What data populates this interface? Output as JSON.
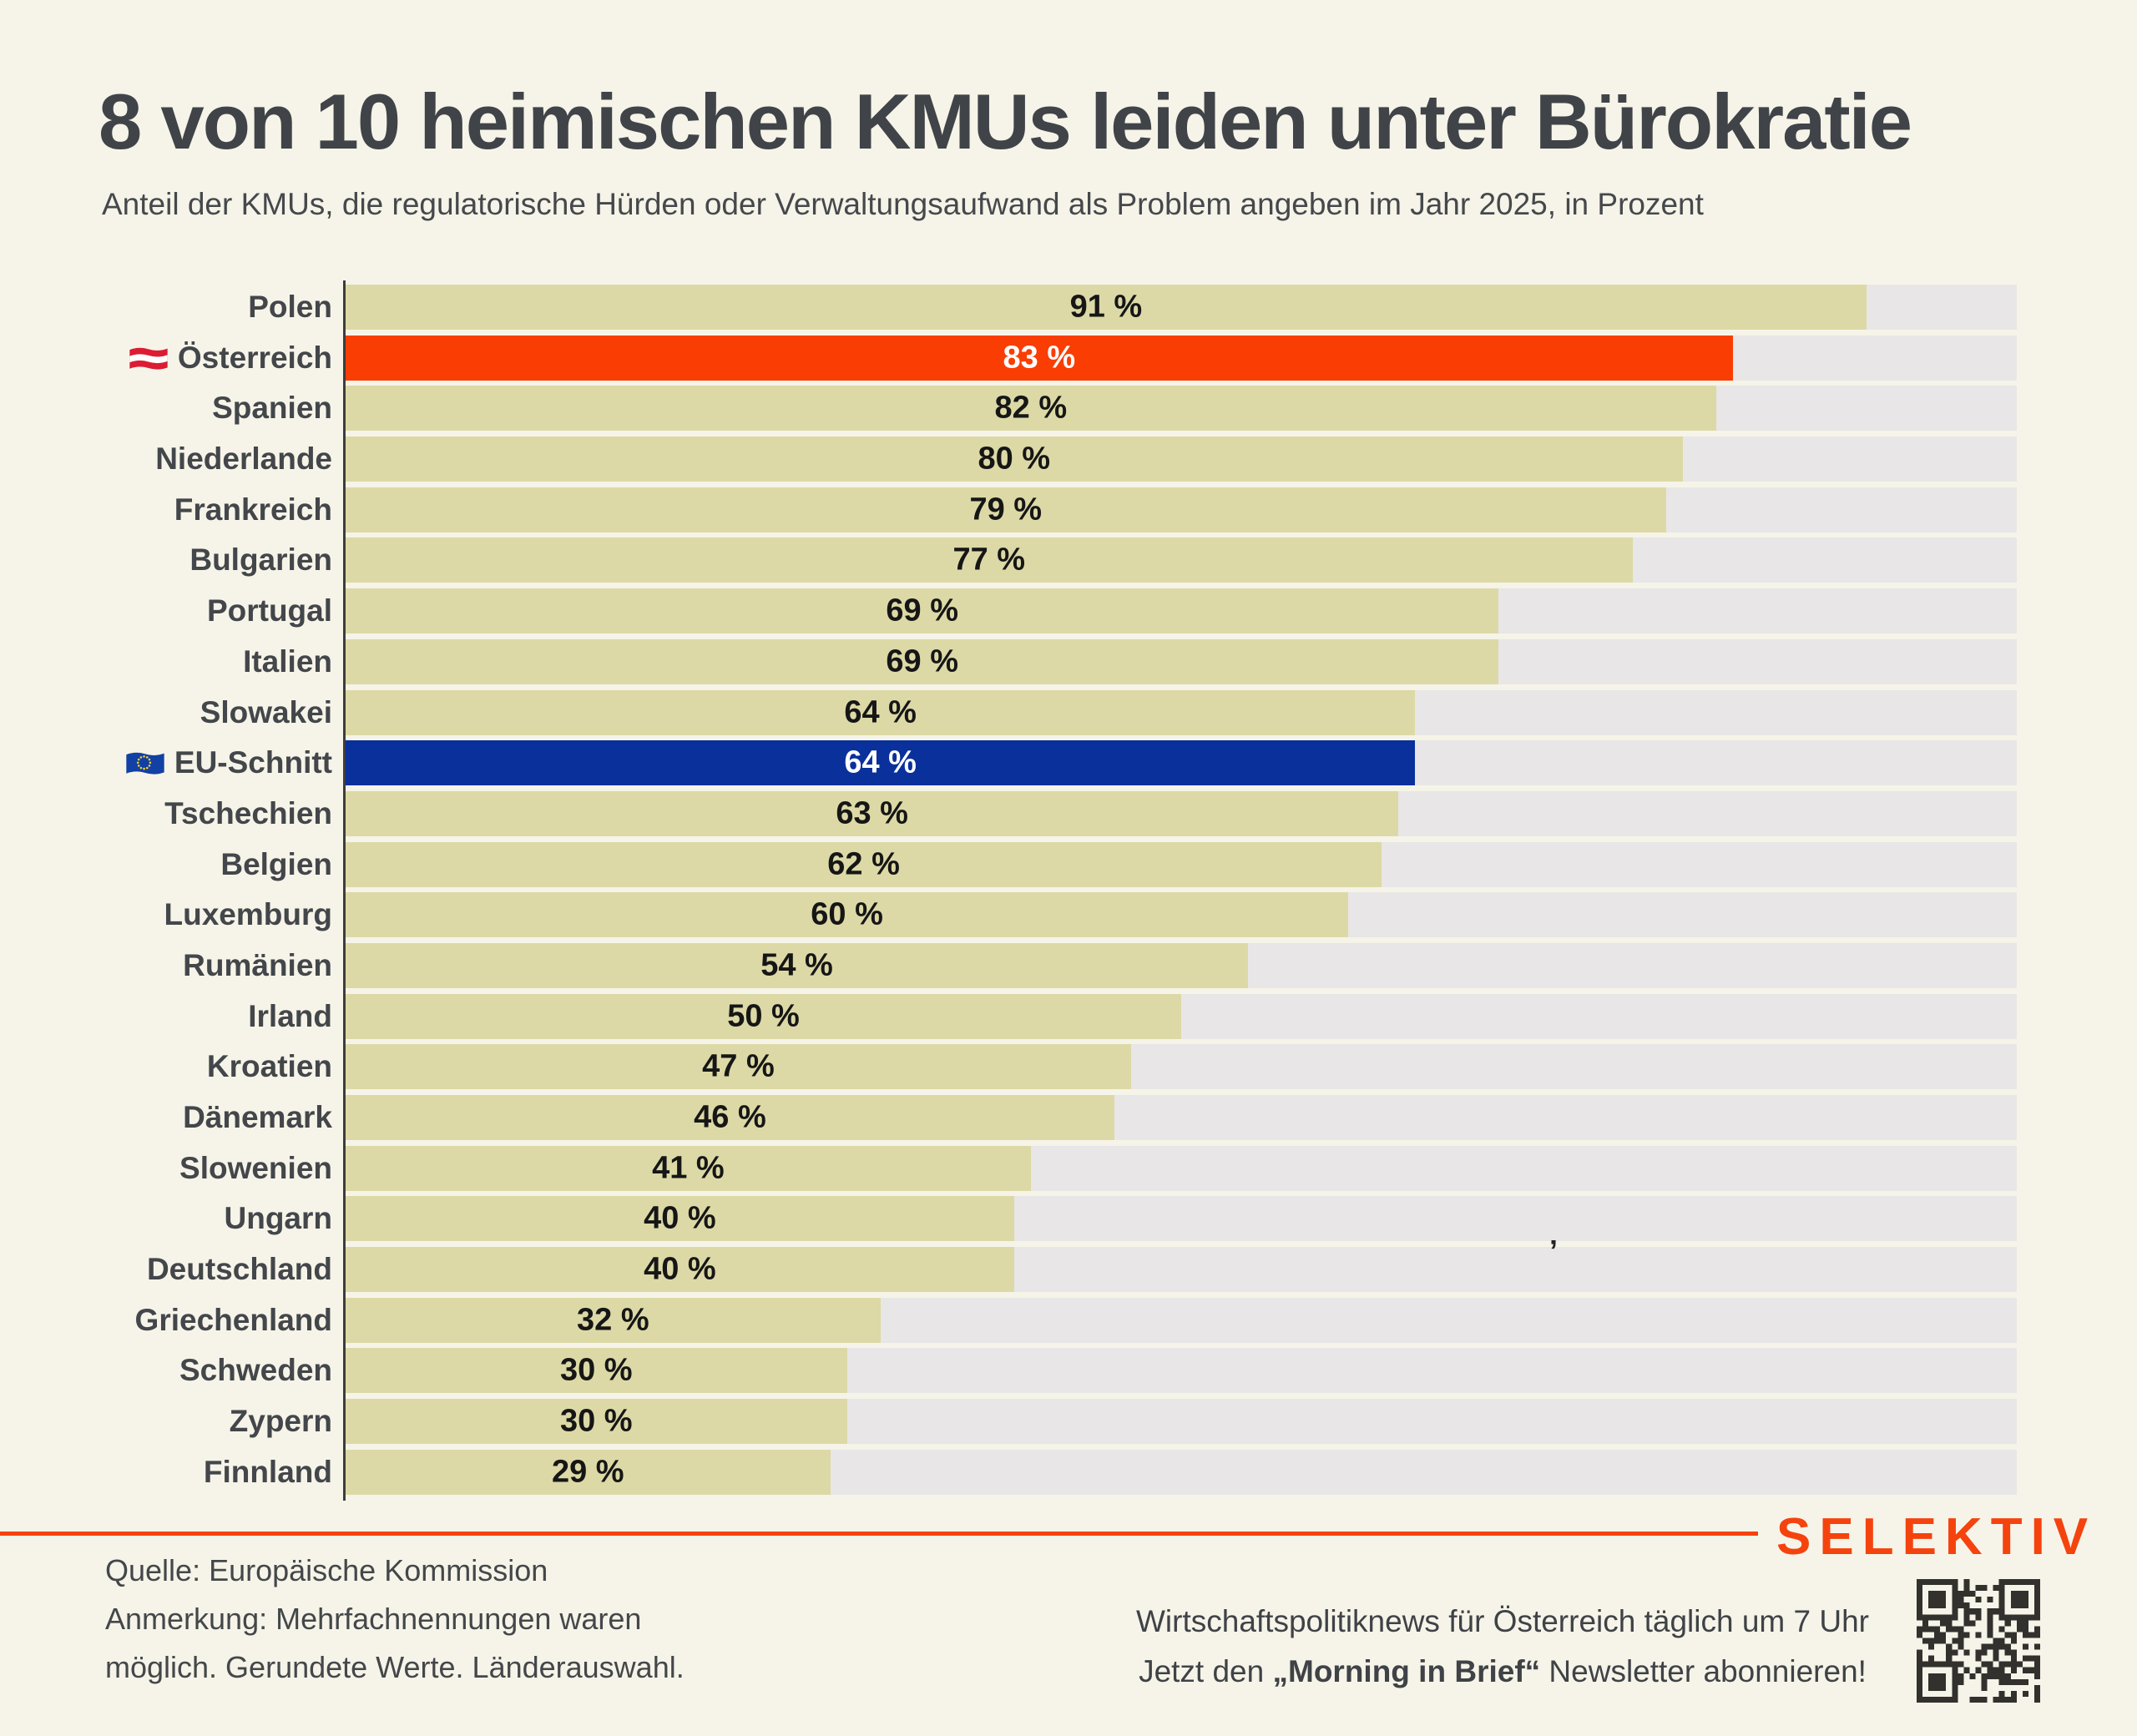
{
  "title": "8 von 10 heimischen KMUs leiden unter Bürokratie",
  "subtitle": "Anteil der KMUs, die regulatorische Hürden oder Verwaltungsaufwand als Problem angeben im Jahr 2025, in Prozent",
  "chart_data": {
    "type": "bar",
    "orientation": "horizontal",
    "unit": "%",
    "xlim": [
      0,
      100
    ],
    "grid": false,
    "legend": false,
    "categories": [
      "Polen",
      "Österreich",
      "Spanien",
      "Niederlande",
      "Frankreich",
      "Bulgarien",
      "Portugal",
      "Italien",
      "Slowakei",
      "EU-Schnitt",
      "Tschechien",
      "Belgien",
      "Luxemburg",
      "Rumänien",
      "Irland",
      "Kroatien",
      "Dänemark",
      "Slowenien",
      "Ungarn",
      "Deutschland",
      "Griechenland",
      "Schweden",
      "Zypern",
      "Finnland"
    ],
    "values": [
      91,
      83,
      82,
      80,
      79,
      77,
      69,
      69,
      64,
      64,
      63,
      62,
      60,
      54,
      50,
      47,
      46,
      41,
      40,
      40,
      32,
      30,
      30,
      29
    ],
    "rows": [
      {
        "label": "Polen",
        "value": 91,
        "display": "91 %",
        "flag": null,
        "highlight_color": null
      },
      {
        "label": "Österreich",
        "value": 83,
        "display": "83 %",
        "flag": "austria",
        "highlight_color": "#fa3d03"
      },
      {
        "label": "Spanien",
        "value": 82,
        "display": "82 %",
        "flag": null,
        "highlight_color": null
      },
      {
        "label": "Niederlande",
        "value": 80,
        "display": "80 %",
        "flag": null,
        "highlight_color": null
      },
      {
        "label": "Frankreich",
        "value": 79,
        "display": "79 %",
        "flag": null,
        "highlight_color": null
      },
      {
        "label": "Bulgarien",
        "value": 77,
        "display": "77 %",
        "flag": null,
        "highlight_color": null
      },
      {
        "label": "Portugal",
        "value": 69,
        "display": "69 %",
        "flag": null,
        "highlight_color": null
      },
      {
        "label": "Italien",
        "value": 69,
        "display": "69 %",
        "flag": null,
        "highlight_color": null
      },
      {
        "label": "Slowakei",
        "value": 64,
        "display": "64 %",
        "flag": null,
        "highlight_color": null
      },
      {
        "label": "EU-Schnitt",
        "value": 64,
        "display": "64 %",
        "flag": "eu",
        "highlight_color": "#0a309c"
      },
      {
        "label": "Tschechien",
        "value": 63,
        "display": "63 %",
        "flag": null,
        "highlight_color": null
      },
      {
        "label": "Belgien",
        "value": 62,
        "display": "62 %",
        "flag": null,
        "highlight_color": null
      },
      {
        "label": "Luxemburg",
        "value": 60,
        "display": "60 %",
        "flag": null,
        "highlight_color": null
      },
      {
        "label": "Rumänien",
        "value": 54,
        "display": "54 %",
        "flag": null,
        "highlight_color": null
      },
      {
        "label": "Irland",
        "value": 50,
        "display": "50 %",
        "flag": null,
        "highlight_color": null
      },
      {
        "label": "Kroatien",
        "value": 47,
        "display": "47 %",
        "flag": null,
        "highlight_color": null
      },
      {
        "label": "Dänemark",
        "value": 46,
        "display": "46 %",
        "flag": null,
        "highlight_color": null
      },
      {
        "label": "Slowenien",
        "value": 41,
        "display": "41 %",
        "flag": null,
        "highlight_color": null
      },
      {
        "label": "Ungarn",
        "value": 40,
        "display": "40 %",
        "flag": null,
        "highlight_color": null
      },
      {
        "label": "Deutschland",
        "value": 40,
        "display": "40 %",
        "flag": null,
        "highlight_color": null
      },
      {
        "label": "Griechenland",
        "value": 32,
        "display": "32 %",
        "flag": null,
        "highlight_color": null
      },
      {
        "label": "Schweden",
        "value": 30,
        "display": "30 %",
        "flag": null,
        "highlight_color": null
      },
      {
        "label": "Zypern",
        "value": 30,
        "display": "30 %",
        "flag": null,
        "highlight_color": null
      },
      {
        "label": "Finnland",
        "value": 29,
        "display": "29 %",
        "flag": null,
        "highlight_color": null
      }
    ]
  },
  "colors": {
    "background": "#f6f4e8",
    "bar_default": "#dcd9a6",
    "bar_track": "#e8e6e6",
    "bar_austria": "#fa3d03",
    "bar_eu": "#0a309c",
    "accent_orange": "#f5430e",
    "text_dark": "#43464a",
    "value_text": "#161616"
  },
  "misc": {
    "stray_mark": "’"
  },
  "footer": {
    "source": "Quelle: Europäische Kommission",
    "note_line1": "Anmerkung: Mehrfachnennungen waren",
    "note_line2": "möglich. Gerundete Werte. Länderauswahl.",
    "brand": "SELEKTIV",
    "newsletter_line1": "Wirtschaftspolitiknews für Österreich täglich um 7 Uhr",
    "newsletter_line2_prefix": "Jetzt den ",
    "newsletter_line2_bold": "„Morning in Brief“",
    "newsletter_line2_suffix": " Newsletter abonnieren!"
  }
}
